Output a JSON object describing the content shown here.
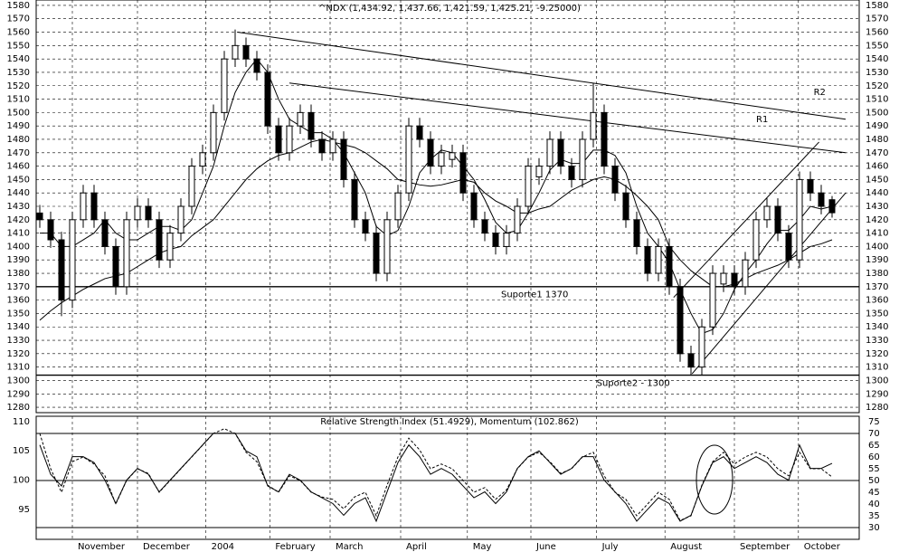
{
  "chart_data": {
    "type": "candlestick",
    "title": "^NDX (1,434.92, 1,437.66, 1,421.59, 1,425.21, -9.25000)",
    "open": [
      1425,
      1420,
      1405,
      1360,
      1420,
      1440,
      1420,
      1400,
      1370,
      1420,
      1430,
      1420,
      1390,
      1410,
      1430,
      1460,
      1470,
      1500,
      1540,
      1550,
      1540,
      1530,
      1490,
      1470,
      1490,
      1500,
      1480,
      1470,
      1480,
      1450,
      1420,
      1410,
      1380,
      1420,
      1440,
      1490,
      1480,
      1460,
      1465,
      1470,
      1440,
      1420,
      1410,
      1400,
      1410,
      1430,
      1452,
      1460,
      1480,
      1460,
      1450,
      1480,
      1500,
      1460,
      1440,
      1420,
      1400,
      1380,
      1400,
      1370,
      1320,
      1310,
      1340,
      1372,
      1380,
      1370,
      1390,
      1420,
      1430,
      1410,
      1390,
      1450,
      1440,
      1434.92
    ],
    "high": [
      1431,
      1426,
      1411,
      1426,
      1446,
      1446,
      1426,
      1406,
      1426,
      1436,
      1436,
      1426,
      1416,
      1436,
      1466,
      1476,
      1506,
      1546,
      1562,
      1556,
      1546,
      1536,
      1496,
      1496,
      1506,
      1506,
      1486,
      1486,
      1486,
      1456,
      1426,
      1416,
      1426,
      1446,
      1496,
      1496,
      1486,
      1476,
      1476,
      1476,
      1446,
      1426,
      1416,
      1416,
      1436,
      1466,
      1466,
      1486,
      1486,
      1466,
      1486,
      1522,
      1506,
      1466,
      1446,
      1426,
      1406,
      1406,
      1406,
      1376,
      1326,
      1346,
      1386,
      1386,
      1386,
      1396,
      1426,
      1436,
      1436,
      1416,
      1456,
      1456,
      1446,
      1437.66
    ],
    "low": [
      1414,
      1399,
      1348,
      1354,
      1414,
      1414,
      1394,
      1364,
      1364,
      1414,
      1414,
      1384,
      1384,
      1404,
      1424,
      1454,
      1464,
      1494,
      1534,
      1534,
      1524,
      1484,
      1464,
      1464,
      1484,
      1474,
      1464,
      1464,
      1444,
      1414,
      1404,
      1374,
      1374,
      1414,
      1434,
      1474,
      1454,
      1454,
      1459,
      1434,
      1414,
      1404,
      1394,
      1394,
      1404,
      1424,
      1446,
      1454,
      1454,
      1444,
      1444,
      1474,
      1454,
      1434,
      1414,
      1394,
      1374,
      1374,
      1364,
      1314,
      1304,
      1304,
      1334,
      1366,
      1364,
      1364,
      1384,
      1414,
      1404,
      1384,
      1384,
      1434,
      1424,
      1421.59
    ],
    "close": [
      1420,
      1405,
      1360,
      1420,
      1440,
      1420,
      1400,
      1370,
      1420,
      1430,
      1420,
      1390,
      1410,
      1430,
      1460,
      1470,
      1500,
      1540,
      1550,
      1540,
      1530,
      1490,
      1470,
      1490,
      1500,
      1480,
      1470,
      1480,
      1450,
      1420,
      1410,
      1380,
      1420,
      1440,
      1490,
      1480,
      1460,
      1470,
      1470,
      1440,
      1420,
      1410,
      1400,
      1410,
      1430,
      1460,
      1460,
      1480,
      1460,
      1450,
      1480,
      1500,
      1460,
      1440,
      1420,
      1400,
      1380,
      1400,
      1370,
      1320,
      1310,
      1340,
      1380,
      1380,
      1370,
      1390,
      1420,
      1430,
      1410,
      1390,
      1450,
      1440,
      1430,
      1425.21
    ],
    "moving_averages": [
      {
        "color": "#000000",
        "values": [
          1410,
          1410,
          1400,
          1400,
          1405,
          1410,
          1420,
          1410,
          1405,
          1405,
          1410,
          1415,
          1415,
          1412,
          1420,
          1440,
          1460,
          1490,
          1515,
          1530,
          1540,
          1530,
          1510,
          1495,
          1490,
          1485,
          1485,
          1480,
          1470,
          1455,
          1440,
          1415,
          1408,
          1412,
          1430,
          1455,
          1465,
          1472,
          1470,
          1460,
          1450,
          1435,
          1418,
          1410,
          1412,
          1425,
          1440,
          1457,
          1465,
          1462,
          1462,
          1472,
          1472,
          1468,
          1455,
          1430,
          1410,
          1400,
          1388,
          1368,
          1350,
          1335,
          1338,
          1350,
          1368,
          1380,
          1390,
          1402,
          1412,
          1412,
          1420,
          1430,
          1428,
          1430
        ]
      },
      {
        "color": "#000000",
        "values": [
          1345,
          1352,
          1358,
          1363,
          1368,
          1372,
          1376,
          1378,
          1380,
          1385,
          1390,
          1395,
          1398,
          1400,
          1408,
          1414,
          1420,
          1430,
          1440,
          1450,
          1458,
          1464,
          1468,
          1470,
          1474,
          1478,
          1480,
          1478,
          1476,
          1474,
          1470,
          1464,
          1458,
          1450,
          1448,
          1446,
          1445,
          1446,
          1448,
          1450,
          1448,
          1440,
          1434,
          1430,
          1425,
          1425,
          1428,
          1430,
          1436,
          1442,
          1446,
          1450,
          1452,
          1450,
          1445,
          1438,
          1430,
          1420,
          1400,
          1390,
          1382,
          1376,
          1370,
          1370,
          1372,
          1376,
          1380,
          1383,
          1386,
          1390,
          1395,
          1400,
          1402,
          1405
        ]
      }
    ],
    "ylim": [
      1276,
      1584
    ],
    "yticks": [
      1280,
      1290,
      1300,
      1310,
      1320,
      1330,
      1340,
      1350,
      1360,
      1370,
      1380,
      1390,
      1400,
      1410,
      1420,
      1430,
      1440,
      1450,
      1460,
      1470,
      1480,
      1490,
      1500,
      1510,
      1520,
      1530,
      1540,
      1550,
      1560,
      1570,
      1580
    ],
    "grid": true,
    "months": [
      {
        "value": 3,
        "label": "November"
      },
      {
        "value": 9,
        "label": "December"
      },
      {
        "value": 15.3,
        "label": "2004"
      },
      {
        "value": 21.2,
        "label": "February"
      },
      {
        "value": 26.75,
        "label": "March"
      },
      {
        "value": 33.25,
        "label": "April"
      },
      {
        "value": 39.4,
        "label": "May"
      },
      {
        "value": 45.25,
        "label": "June"
      },
      {
        "value": 51.3,
        "label": "July"
      },
      {
        "value": 57.6,
        "label": "August"
      },
      {
        "value": 64,
        "label": "September"
      },
      {
        "value": 69.9,
        "label": "October"
      }
    ],
    "supports": [
      1370,
      1304
    ],
    "trendlines": [
      {
        "x": [
          18.2,
          74.25
        ],
        "y": [
          1560,
          1495
        ]
      },
      {
        "x": [
          23,
          74.25
        ],
        "y": [
          1522,
          1470
        ]
      },
      {
        "x": [
          60.1,
          74.25
        ],
        "y": [
          1305,
          1440
        ]
      },
      {
        "x": [
          58.4,
          71.8
        ],
        "y": [
          1362,
          1478
        ]
      }
    ],
    "annotations": [
      {
        "text": "R2",
        "x": 71.3,
        "y": 1515
      },
      {
        "text": "R1",
        "x": 66,
        "y": 1495
      },
      {
        "text": "Suporte1 1370",
        "x": 42.5,
        "y": 1364
      },
      {
        "text": "Suporte2 - 1300",
        "x": 51.3,
        "y": 1298
      }
    ],
    "indicator": {
      "title": "Relative Strength Index (51.4929), Momentum (102.862)",
      "series": [
        {
          "name": "Momentum",
          "color": "#000000",
          "dash": false,
          "values": [
            106,
            101,
            99,
            104,
            104,
            103,
            100,
            96,
            100,
            102,
            101,
            98,
            100,
            102,
            104,
            106,
            108,
            108,
            108,
            105,
            104,
            99,
            98,
            101,
            100,
            98,
            97,
            96,
            94,
            96,
            97,
            93,
            98,
            103,
            106,
            104,
            101,
            102,
            101,
            99,
            97,
            98,
            96,
            98,
            102,
            104,
            105,
            103,
            101,
            102,
            104,
            104,
            100,
            98,
            96,
            93,
            95,
            97,
            96,
            93,
            94,
            99,
            103,
            104,
            102,
            103,
            104,
            103,
            101,
            100,
            106,
            102,
            102,
            102.862
          ]
        },
        {
          "name": "Relative Strength Index",
          "color": "#000000",
          "dash": true,
          "axis": "y2",
          "values": [
            70,
            55,
            45,
            58,
            60,
            57,
            52,
            40,
            50,
            55,
            53,
            45,
            50,
            55,
            60,
            65,
            70,
            72,
            70,
            62,
            58,
            48,
            45,
            52,
            50,
            45,
            43,
            42,
            38,
            43,
            45,
            35,
            48,
            60,
            68,
            63,
            55,
            57,
            55,
            50,
            45,
            47,
            42,
            46,
            55,
            60,
            62,
            58,
            53,
            55,
            60,
            62,
            52,
            45,
            42,
            35,
            40,
            45,
            42,
            33,
            35,
            48,
            58,
            62,
            57,
            60,
            62,
            60,
            55,
            52,
            62,
            55,
            55,
            51.4929
          ]
        }
      ],
      "ylim": [
        89.9,
        110.9
      ],
      "yticks": [
        95,
        100,
        105,
        110
      ],
      "y2lim": [
        25,
        77.3
      ],
      "y2ticks": [
        30,
        35,
        40,
        45,
        50,
        55,
        60,
        65,
        70,
        75
      ],
      "y2_levels": [
        30,
        50,
        70
      ]
    }
  }
}
